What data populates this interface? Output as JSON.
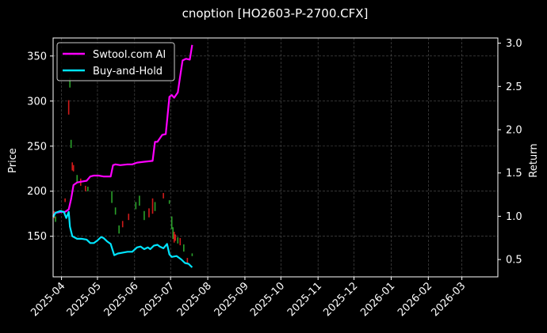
{
  "chart_data": {
    "type": "line",
    "title": "cnoption [HO2603-P-2700.CFX]",
    "ylabel_left": "Price",
    "ylabel_right": "Return",
    "xlabel": "",
    "grid": true,
    "legend_placement": "top-left",
    "background": "#000000",
    "x_ticks": [
      "2025-04",
      "2025-05",
      "2025-06",
      "2025-07",
      "2025-08",
      "2025-09",
      "2025-10",
      "2025-11",
      "2025-12",
      "2026-01",
      "2026-02",
      "2026-03"
    ],
    "x_range": [
      "2025-03-25",
      "2026-03-31"
    ],
    "y_left": {
      "ticks": [
        150,
        200,
        250,
        300,
        350
      ],
      "lim": [
        105,
        370
      ]
    },
    "y_right": {
      "ticks": [
        0.5,
        1.0,
        1.5,
        2.0,
        2.5,
        3.0
      ],
      "lim": [
        0.3,
        3.06
      ]
    },
    "series": [
      {
        "name": "Swtool.com AI",
        "axis": "right",
        "color": "#ff00ff",
        "points": [
          [
            "2025-03-25",
            1.0
          ],
          [
            "2025-03-27",
            1.04
          ],
          [
            "2025-04-01",
            1.05
          ],
          [
            "2025-04-04",
            1.05
          ],
          [
            "2025-04-07",
            1.08
          ],
          [
            "2025-04-09",
            1.2
          ],
          [
            "2025-04-11",
            1.36
          ],
          [
            "2025-04-14",
            1.39
          ],
          [
            "2025-04-18",
            1.4
          ],
          [
            "2025-04-22",
            1.41
          ],
          [
            "2025-04-25",
            1.46
          ],
          [
            "2025-04-28",
            1.47
          ],
          [
            "2025-05-02",
            1.47
          ],
          [
            "2025-05-06",
            1.46
          ],
          [
            "2025-05-08",
            1.46
          ],
          [
            "2025-05-12",
            1.46
          ],
          [
            "2025-05-14",
            1.59
          ],
          [
            "2025-05-16",
            1.6
          ],
          [
            "2025-05-20",
            1.59
          ],
          [
            "2025-05-26",
            1.6
          ],
          [
            "2025-05-30",
            1.6
          ],
          [
            "2025-06-03",
            1.62
          ],
          [
            "2025-06-09",
            1.63
          ],
          [
            "2025-06-16",
            1.64
          ],
          [
            "2025-06-18",
            1.86
          ],
          [
            "2025-06-20",
            1.86
          ],
          [
            "2025-06-24",
            1.94
          ],
          [
            "2025-06-27",
            1.95
          ],
          [
            "2025-06-30",
            2.38
          ],
          [
            "2025-07-02",
            2.4
          ],
          [
            "2025-07-04",
            2.37
          ],
          [
            "2025-07-07",
            2.43
          ],
          [
            "2025-07-09",
            2.62
          ],
          [
            "2025-07-11",
            2.8
          ],
          [
            "2025-07-14",
            2.82
          ],
          [
            "2025-07-17",
            2.81
          ],
          [
            "2025-07-19",
            2.98
          ]
        ]
      },
      {
        "name": "Buy-and-Hold",
        "axis": "right",
        "color": "#00e5ff",
        "points": [
          [
            "2025-03-25",
            0.99
          ],
          [
            "2025-03-27",
            1.04
          ],
          [
            "2025-03-31",
            1.06
          ],
          [
            "2025-04-03",
            1.05
          ],
          [
            "2025-04-05",
            0.98
          ],
          [
            "2025-04-07",
            1.05
          ],
          [
            "2025-04-08",
            0.88
          ],
          [
            "2025-04-10",
            0.77
          ],
          [
            "2025-04-14",
            0.74
          ],
          [
            "2025-04-18",
            0.74
          ],
          [
            "2025-04-22",
            0.73
          ],
          [
            "2025-04-25",
            0.69
          ],
          [
            "2025-04-28",
            0.69
          ],
          [
            "2025-05-01",
            0.72
          ],
          [
            "2025-05-04",
            0.76
          ],
          [
            "2025-05-06",
            0.75
          ],
          [
            "2025-05-09",
            0.71
          ],
          [
            "2025-05-12",
            0.68
          ],
          [
            "2025-05-15",
            0.55
          ],
          [
            "2025-05-18",
            0.57
          ],
          [
            "2025-05-22",
            0.58
          ],
          [
            "2025-05-26",
            0.59
          ],
          [
            "2025-05-30",
            0.59
          ],
          [
            "2025-06-03",
            0.64
          ],
          [
            "2025-06-06",
            0.65
          ],
          [
            "2025-06-09",
            0.62
          ],
          [
            "2025-06-12",
            0.64
          ],
          [
            "2025-06-14",
            0.62
          ],
          [
            "2025-06-17",
            0.66
          ],
          [
            "2025-06-20",
            0.67
          ],
          [
            "2025-06-22",
            0.65
          ],
          [
            "2025-06-25",
            0.63
          ],
          [
            "2025-06-28",
            0.68
          ],
          [
            "2025-06-30",
            0.56
          ],
          [
            "2025-07-02",
            0.53
          ],
          [
            "2025-07-06",
            0.54
          ],
          [
            "2025-07-08",
            0.52
          ],
          [
            "2025-07-10",
            0.5
          ],
          [
            "2025-07-13",
            0.46
          ],
          [
            "2025-07-16",
            0.45
          ],
          [
            "2025-07-19",
            0.41
          ]
        ]
      }
    ],
    "candles": [
      {
        "date": "2025-03-26",
        "low": 170,
        "high": 178,
        "color": "#d11a1a"
      },
      {
        "date": "2025-03-27",
        "low": 166,
        "high": 172,
        "color": "#2aa02a"
      },
      {
        "date": "2025-04-04",
        "low": 188,
        "high": 192,
        "color": "#d11a1a"
      },
      {
        "date": "2025-04-07",
        "low": 285,
        "high": 301,
        "color": "#d11a1a"
      },
      {
        "date": "2025-04-08",
        "low": 315,
        "high": 326,
        "color": "#2aa02a"
      },
      {
        "date": "2025-04-09",
        "low": 248,
        "high": 257,
        "color": "#2aa02a"
      },
      {
        "date": "2025-04-10",
        "low": 223,
        "high": 232,
        "color": "#d11a1a"
      },
      {
        "date": "2025-04-11",
        "low": 222,
        "high": 229,
        "color": "#d11a1a"
      },
      {
        "date": "2025-04-14",
        "low": 210,
        "high": 218,
        "color": "#2aa02a"
      },
      {
        "date": "2025-04-17",
        "low": 206,
        "high": 214,
        "color": "#d11a1a"
      },
      {
        "date": "2025-04-21",
        "low": 200,
        "high": 206,
        "color": "#d11a1a"
      },
      {
        "date": "2025-04-23",
        "low": 200,
        "high": 205,
        "color": "#2aa02a"
      },
      {
        "date": "2025-05-13",
        "low": 187,
        "high": 200,
        "color": "#2aa02a"
      },
      {
        "date": "2025-05-16",
        "low": 174,
        "high": 182,
        "color": "#2aa02a"
      },
      {
        "date": "2025-05-19",
        "low": 153,
        "high": 162,
        "color": "#2aa02a"
      },
      {
        "date": "2025-05-22",
        "low": 160,
        "high": 167,
        "color": "#d11a1a"
      },
      {
        "date": "2025-05-27",
        "low": 168,
        "high": 175,
        "color": "#d11a1a"
      },
      {
        "date": "2025-06-02",
        "low": 180,
        "high": 188,
        "color": "#2aa02a"
      },
      {
        "date": "2025-06-05",
        "low": 184,
        "high": 195,
        "color": "#2aa02a"
      },
      {
        "date": "2025-06-09",
        "low": 168,
        "high": 178,
        "color": "#2aa02a"
      },
      {
        "date": "2025-06-13",
        "low": 171,
        "high": 181,
        "color": "#d11a1a"
      },
      {
        "date": "2025-06-16",
        "low": 175,
        "high": 192,
        "color": "#d11a1a"
      },
      {
        "date": "2025-06-18",
        "low": 178,
        "high": 188,
        "color": "#2aa02a"
      },
      {
        "date": "2025-06-25",
        "low": 192,
        "high": 198,
        "color": "#d11a1a"
      },
      {
        "date": "2025-06-30",
        "low": 186,
        "high": 190,
        "color": "#2aa02a"
      },
      {
        "date": "2025-07-02",
        "low": 158,
        "high": 172,
        "color": "#2aa02a"
      },
      {
        "date": "2025-07-03",
        "low": 147,
        "high": 160,
        "color": "#2aa02a"
      },
      {
        "date": "2025-07-04",
        "low": 143,
        "high": 155,
        "color": "#d11a1a"
      },
      {
        "date": "2025-07-05",
        "low": 145,
        "high": 152,
        "color": "#d11a1a"
      },
      {
        "date": "2025-07-07",
        "low": 142,
        "high": 149,
        "color": "#2aa02a"
      },
      {
        "date": "2025-07-09",
        "low": 140,
        "high": 148,
        "color": "#d11a1a"
      },
      {
        "date": "2025-07-12",
        "low": 133,
        "high": 141,
        "color": "#2aa02a"
      },
      {
        "date": "2025-07-15",
        "low": 120,
        "high": 126,
        "color": "#d11a1a"
      },
      {
        "date": "2025-07-19",
        "low": 128,
        "high": 131,
        "color": "#2aa02a"
      }
    ]
  }
}
